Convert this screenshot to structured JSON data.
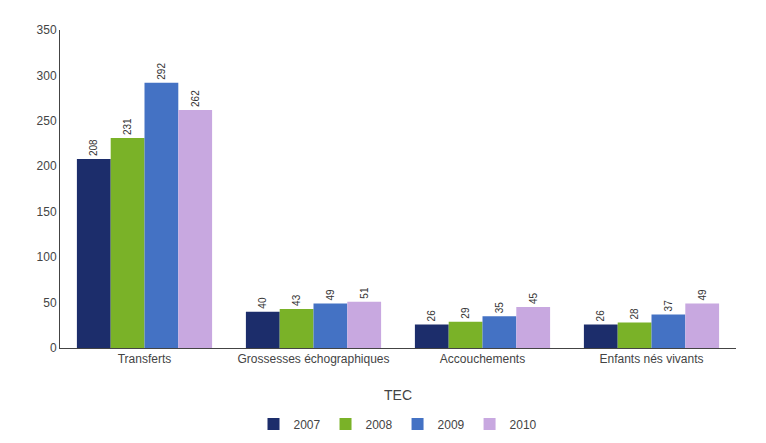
{
  "chart_data": {
    "type": "bar",
    "categories": [
      "Transferts",
      "Grossesses échographiques",
      "Accouchements",
      "Enfants nés vivants"
    ],
    "series": [
      {
        "name": "2007",
        "color": "#1c2d6b",
        "values": [
          208,
          40,
          26,
          26
        ]
      },
      {
        "name": "2008",
        "color": "#7ab228",
        "values": [
          231,
          43,
          29,
          28
        ]
      },
      {
        "name": "2009",
        "color": "#4472c4",
        "values": [
          292,
          49,
          35,
          37
        ]
      },
      {
        "name": "2010",
        "color": "#c8a8e0",
        "values": [
          262,
          51,
          45,
          49
        ]
      }
    ],
    "xlabel": "TEC",
    "ylim": [
      0,
      350
    ],
    "yticks": [
      0,
      50,
      100,
      150,
      200,
      250,
      300,
      350
    ],
    "data_labels": true,
    "grid": false,
    "legend": "bottom"
  }
}
